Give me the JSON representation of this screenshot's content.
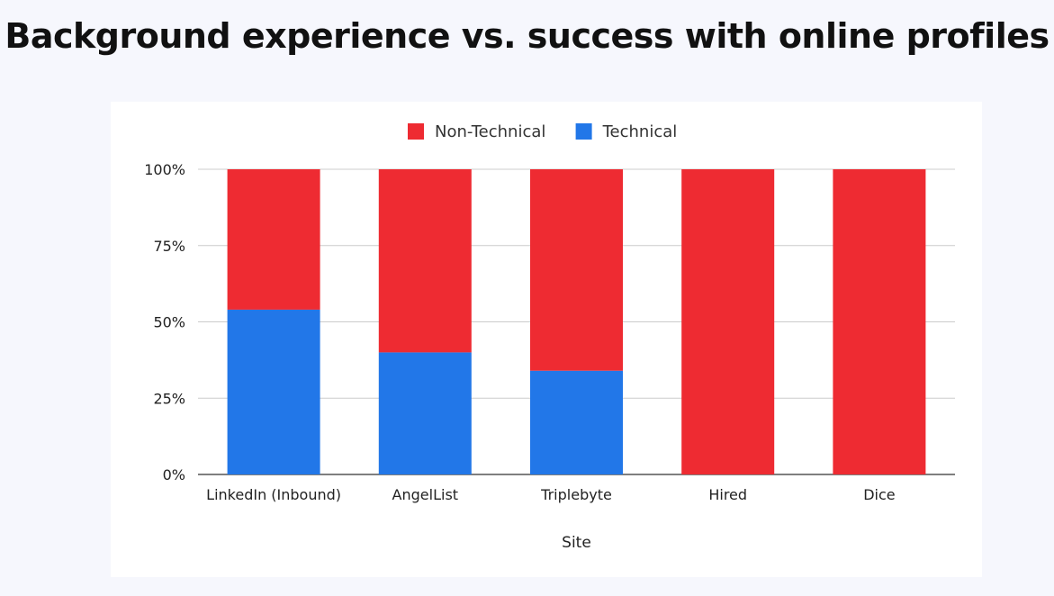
{
  "title": "Background experience vs. success with online profiles",
  "chart_data": {
    "type": "bar",
    "stacked": true,
    "categories": [
      "LinkedIn (Inbound)",
      "AngelList",
      "Triplebyte",
      "Hired",
      "Dice"
    ],
    "series": [
      {
        "name": "Technical",
        "color": "#2277e8",
        "values": [
          54,
          40,
          34,
          0,
          0
        ]
      },
      {
        "name": "Non-Technical",
        "color": "#ee2b32",
        "values": [
          46,
          60,
          66,
          100,
          100
        ]
      }
    ],
    "legend_order": [
      "Non-Technical",
      "Technical"
    ],
    "legend_position": "top-center",
    "xlabel": "Site",
    "ylabel": "",
    "ylim": [
      0,
      100
    ],
    "yticks": [
      "0%",
      "25%",
      "50%",
      "75%",
      "100%"
    ],
    "grid": true
  }
}
